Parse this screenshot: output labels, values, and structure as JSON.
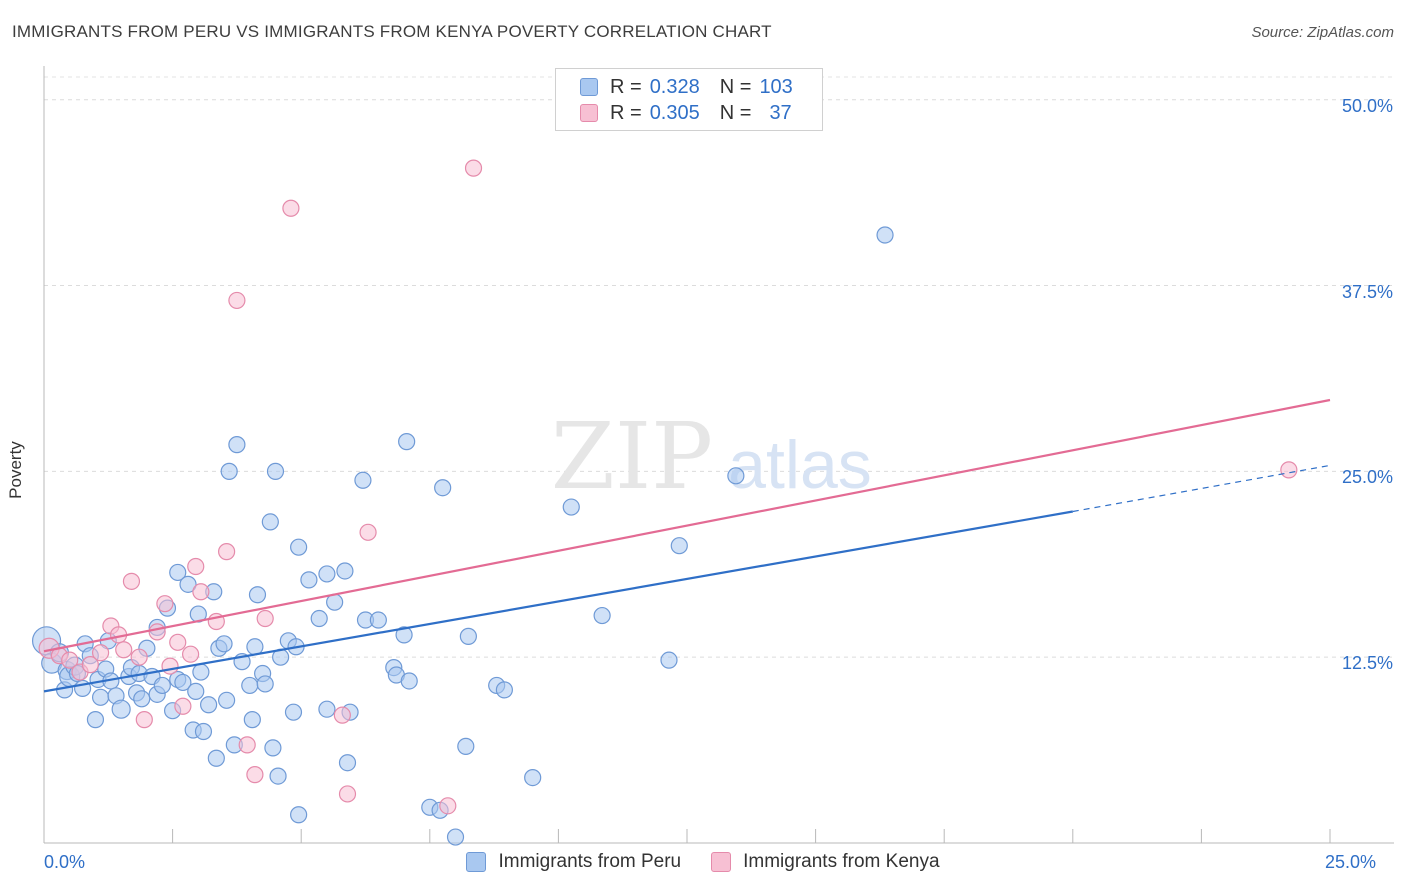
{
  "header": {
    "title": "IMMIGRANTS FROM PERU VS IMMIGRANTS FROM KENYA POVERTY CORRELATION CHART",
    "source": "Source: ZipAtlas.com"
  },
  "watermark": {
    "zip": "ZIP",
    "atlas": "atlas"
  },
  "legend": {
    "series": [
      {
        "r_label": "R =",
        "r_value": "0.328",
        "n_label": "N =",
        "n_value": "103",
        "color": "#a9c8f0",
        "stroke": "#6f9ad6"
      },
      {
        "r_label": "R =",
        "r_value": "0.305",
        "n_label": "N =",
        "n_value": "37",
        "color": "#f7c0d3",
        "stroke": "#e58bab"
      }
    ]
  },
  "bottom_legend": {
    "items": [
      {
        "label": "Immigrants from Peru",
        "color": "#a9c8f0",
        "stroke": "#6f9ad6"
      },
      {
        "label": "Immigrants from Kenya",
        "color": "#f7c0d3",
        "stroke": "#e58bab"
      }
    ]
  },
  "chart_data": {
    "type": "scatter",
    "title": "IMMIGRANTS FROM PERU VS IMMIGRANTS FROM KENYA POVERTY CORRELATION CHART",
    "xlabel": "",
    "ylabel": "Poverty",
    "xlim": [
      0,
      25
    ],
    "ylim": [
      0,
      52
    ],
    "x_tick_labels": {
      "min": "0.0%",
      "max": "25.0%"
    },
    "y_ticks": [
      {
        "value": 12.5,
        "label": "12.5%"
      },
      {
        "value": 25.0,
        "label": "25.0%"
      },
      {
        "value": 37.5,
        "label": "37.5%"
      },
      {
        "value": 50.0,
        "label": "50.0%"
      }
    ],
    "grid": "horizontal dashed",
    "series": [
      {
        "name": "Immigrants from Peru",
        "color": "#6f9ad6",
        "fill": "#a9c8f0",
        "trend": {
          "x0": 0,
          "y0": 10.2,
          "x1": 20,
          "y1": 22.3,
          "dash_to_x": 25,
          "dash_to_y": 25.4,
          "color": "#2f6fc7"
        },
        "points": [
          [
            0.05,
            13.6,
            14
          ],
          [
            0.15,
            12.1,
            10
          ],
          [
            0.3,
            12.8,
            9
          ],
          [
            0.4,
            10.3,
            8
          ],
          [
            0.45,
            11.6,
            9
          ],
          [
            0.5,
            11.2,
            10
          ],
          [
            0.6,
            11.9,
            9
          ],
          [
            0.65,
            11.4,
            8
          ],
          [
            0.75,
            10.4,
            8
          ],
          [
            0.8,
            13.4,
            8
          ],
          [
            0.9,
            12.6,
            8
          ],
          [
            1.0,
            8.3,
            8
          ],
          [
            1.05,
            11.0,
            8
          ],
          [
            1.1,
            9.8,
            8
          ],
          [
            1.2,
            11.7,
            8
          ],
          [
            1.25,
            13.6,
            8
          ],
          [
            1.3,
            10.9,
            8
          ],
          [
            1.4,
            9.9,
            8
          ],
          [
            1.5,
            9.0,
            9
          ],
          [
            1.65,
            11.2,
            8
          ],
          [
            1.7,
            11.8,
            8
          ],
          [
            1.8,
            10.1,
            8
          ],
          [
            1.85,
            11.4,
            8
          ],
          [
            1.9,
            9.7,
            8
          ],
          [
            2.0,
            13.1,
            8
          ],
          [
            2.1,
            11.2,
            8
          ],
          [
            2.2,
            14.5,
            8
          ],
          [
            2.2,
            10.0,
            8
          ],
          [
            2.3,
            10.6,
            8
          ],
          [
            2.4,
            15.8,
            8
          ],
          [
            2.5,
            8.9,
            8
          ],
          [
            2.6,
            11.0,
            8
          ],
          [
            2.6,
            18.2,
            8
          ],
          [
            2.7,
            10.8,
            8
          ],
          [
            2.8,
            17.4,
            8
          ],
          [
            2.9,
            7.6,
            8
          ],
          [
            2.95,
            10.2,
            8
          ],
          [
            3.0,
            15.4,
            8
          ],
          [
            3.05,
            11.5,
            8
          ],
          [
            3.1,
            7.5,
            8
          ],
          [
            3.2,
            9.3,
            8
          ],
          [
            3.3,
            16.9,
            8
          ],
          [
            3.35,
            5.7,
            8
          ],
          [
            3.4,
            13.1,
            8
          ],
          [
            3.5,
            13.4,
            8
          ],
          [
            3.55,
            9.6,
            8
          ],
          [
            3.6,
            25.0,
            8
          ],
          [
            3.7,
            6.6,
            8
          ],
          [
            3.75,
            26.8,
            8
          ],
          [
            3.85,
            12.2,
            8
          ],
          [
            4.0,
            10.6,
            8
          ],
          [
            4.05,
            8.3,
            8
          ],
          [
            4.1,
            13.2,
            8
          ],
          [
            4.15,
            16.7,
            8
          ],
          [
            4.25,
            11.4,
            8
          ],
          [
            4.3,
            10.7,
            8
          ],
          [
            4.4,
            21.6,
            8
          ],
          [
            4.45,
            6.4,
            8
          ],
          [
            4.5,
            25.0,
            8
          ],
          [
            4.55,
            4.5,
            8
          ],
          [
            4.6,
            12.5,
            8
          ],
          [
            4.75,
            13.6,
            8
          ],
          [
            4.85,
            8.8,
            8
          ],
          [
            4.9,
            13.2,
            8
          ],
          [
            4.95,
            19.9,
            8
          ],
          [
            4.95,
            1.9,
            8
          ],
          [
            5.15,
            17.7,
            8
          ],
          [
            5.35,
            15.1,
            8
          ],
          [
            5.5,
            18.1,
            8
          ],
          [
            5.5,
            9.0,
            8
          ],
          [
            5.65,
            16.2,
            8
          ],
          [
            5.85,
            18.3,
            8
          ],
          [
            5.9,
            5.4,
            8
          ],
          [
            5.95,
            8.8,
            8
          ],
          [
            6.2,
            24.4,
            8
          ],
          [
            6.25,
            15.0,
            8
          ],
          [
            6.5,
            15.0,
            8
          ],
          [
            6.8,
            11.8,
            8
          ],
          [
            6.85,
            11.3,
            8
          ],
          [
            7.0,
            14.0,
            8
          ],
          [
            7.05,
            27.0,
            8
          ],
          [
            7.1,
            10.9,
            8
          ],
          [
            7.5,
            2.4,
            8
          ],
          [
            7.7,
            2.2,
            8
          ],
          [
            7.75,
            23.9,
            8
          ],
          [
            8.0,
            0.4,
            8
          ],
          [
            8.2,
            6.5,
            8
          ],
          [
            8.25,
            13.9,
            8
          ],
          [
            8.8,
            10.6,
            8
          ],
          [
            8.95,
            10.3,
            8
          ],
          [
            9.5,
            4.4,
            8
          ],
          [
            10.25,
            22.6,
            8
          ],
          [
            10.85,
            15.3,
            8
          ],
          [
            12.15,
            12.3,
            8
          ],
          [
            12.35,
            20.0,
            8
          ],
          [
            13.45,
            24.7,
            8
          ],
          [
            16.35,
            40.9,
            8
          ]
        ]
      },
      {
        "name": "Immigrants from Kenya",
        "color": "#e58bab",
        "fill": "#f7c0d3",
        "trend": {
          "x0": 0,
          "y0": 12.9,
          "x1": 25,
          "y1": 29.8,
          "color": "#e36b94"
        },
        "points": [
          [
            0.1,
            13.1,
            10
          ],
          [
            0.3,
            12.6,
            8
          ],
          [
            0.5,
            12.3,
            8
          ],
          [
            0.7,
            11.5,
            8
          ],
          [
            0.9,
            12.0,
            8
          ],
          [
            1.1,
            12.8,
            8
          ],
          [
            1.3,
            14.6,
            8
          ],
          [
            1.45,
            14.0,
            8
          ],
          [
            1.55,
            13.0,
            8
          ],
          [
            1.7,
            17.6,
            8
          ],
          [
            1.85,
            12.5,
            8
          ],
          [
            1.95,
            8.3,
            8
          ],
          [
            2.2,
            14.2,
            8
          ],
          [
            2.35,
            16.1,
            8
          ],
          [
            2.45,
            11.9,
            8
          ],
          [
            2.6,
            13.5,
            8
          ],
          [
            2.7,
            9.2,
            8
          ],
          [
            2.85,
            12.7,
            8
          ],
          [
            2.95,
            18.6,
            8
          ],
          [
            3.05,
            16.9,
            8
          ],
          [
            3.35,
            14.9,
            8
          ],
          [
            3.55,
            19.6,
            8
          ],
          [
            3.75,
            36.5,
            8
          ],
          [
            3.95,
            6.6,
            8
          ],
          [
            4.1,
            4.6,
            8
          ],
          [
            4.3,
            15.1,
            8
          ],
          [
            4.8,
            42.7,
            8
          ],
          [
            5.8,
            8.6,
            8
          ],
          [
            5.9,
            3.3,
            8
          ],
          [
            6.3,
            20.9,
            8
          ],
          [
            7.85,
            2.5,
            8
          ],
          [
            8.35,
            45.4,
            8
          ],
          [
            24.2,
            25.1,
            8
          ]
        ]
      }
    ]
  }
}
